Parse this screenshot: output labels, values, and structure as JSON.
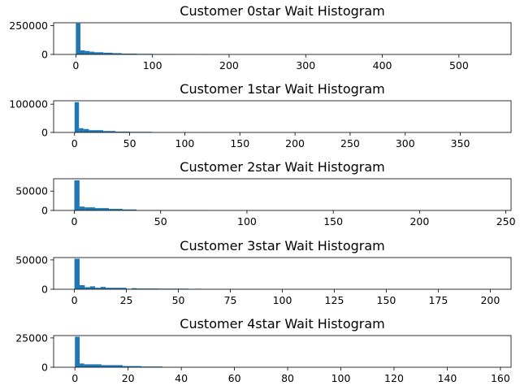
{
  "chart_data": [
    {
      "type": "bar",
      "title": "Customer 0star Wait Histogram",
      "xlim": [
        -29,
        568
      ],
      "ylim": [
        0,
        275000
      ],
      "xticks": [
        0,
        100,
        200,
        300,
        400,
        500
      ],
      "yticks": [
        0,
        250000
      ],
      "bars": [
        {
          "x0": 0,
          "x1": 6,
          "y": 270000
        },
        {
          "x0": 6,
          "x1": 12,
          "y": 35000
        },
        {
          "x0": 12,
          "x1": 18,
          "y": 30000
        },
        {
          "x0": 18,
          "x1": 24,
          "y": 24000
        },
        {
          "x0": 24,
          "x1": 36,
          "y": 19000
        },
        {
          "x0": 36,
          "x1": 48,
          "y": 15000
        },
        {
          "x0": 48,
          "x1": 60,
          "y": 11000
        },
        {
          "x0": 60,
          "x1": 80,
          "y": 7000
        },
        {
          "x0": 80,
          "x1": 100,
          "y": 5000
        },
        {
          "x0": 100,
          "x1": 130,
          "y": 3500
        },
        {
          "x0": 130,
          "x1": 160,
          "y": 2500
        },
        {
          "x0": 160,
          "x1": 178,
          "y": 1500
        },
        {
          "x0": 178,
          "x1": 260,
          "y": 300
        }
      ]
    },
    {
      "type": "bar",
      "title": "Customer 1star Wait Histogram",
      "xlim": [
        -19,
        396
      ],
      "ylim": [
        0,
        112000
      ],
      "xticks": [
        0,
        50,
        100,
        150,
        200,
        250,
        300,
        350
      ],
      "yticks": [
        0,
        100000
      ],
      "bars": [
        {
          "x0": 0,
          "x1": 4,
          "y": 107000
        },
        {
          "x0": 4,
          "x1": 8,
          "y": 15000
        },
        {
          "x0": 8,
          "x1": 13,
          "y": 12000
        },
        {
          "x0": 13,
          "x1": 26,
          "y": 8000
        },
        {
          "x0": 26,
          "x1": 37,
          "y": 5000
        },
        {
          "x0": 37,
          "x1": 50,
          "y": 3000
        },
        {
          "x0": 50,
          "x1": 70,
          "y": 2000
        },
        {
          "x0": 70,
          "x1": 120,
          "y": 400
        }
      ]
    },
    {
      "type": "bar",
      "title": "Customer 2star Wait Histogram",
      "xlim": [
        -12,
        253
      ],
      "ylim": [
        0,
        82000
      ],
      "xticks": [
        0,
        50,
        100,
        150,
        200,
        250
      ],
      "yticks": [
        0,
        50000
      ],
      "bars": [
        {
          "x0": 0,
          "x1": 3,
          "y": 78000
        },
        {
          "x0": 3,
          "x1": 6,
          "y": 10000
        },
        {
          "x0": 6,
          "x1": 12,
          "y": 8000
        },
        {
          "x0": 12,
          "x1": 20,
          "y": 6000
        },
        {
          "x0": 20,
          "x1": 28,
          "y": 4000
        },
        {
          "x0": 28,
          "x1": 36,
          "y": 2500
        },
        {
          "x0": 36,
          "x1": 80,
          "y": 400
        }
      ]
    },
    {
      "type": "bar",
      "title": "Customer 3star Wait Histogram",
      "xlim": [
        -10,
        210
      ],
      "ylim": [
        0,
        54000
      ],
      "xticks": [
        0,
        25,
        50,
        75,
        100,
        125,
        150,
        175,
        200
      ],
      "yticks": [
        0,
        50000
      ],
      "bars": [
        {
          "x0": 0,
          "x1": 2.5,
          "y": 52000
        },
        {
          "x0": 2.5,
          "x1": 5,
          "y": 7000
        },
        {
          "x0": 5,
          "x1": 7.5,
          "y": 3500
        },
        {
          "x0": 7.5,
          "x1": 10,
          "y": 5000
        },
        {
          "x0": 10,
          "x1": 12.5,
          "y": 2500
        },
        {
          "x0": 12.5,
          "x1": 15,
          "y": 4000
        },
        {
          "x0": 15,
          "x1": 25,
          "y": 2500
        },
        {
          "x0": 25,
          "x1": 27.5,
          "y": 800
        },
        {
          "x0": 27.5,
          "x1": 30,
          "y": 1800
        },
        {
          "x0": 30,
          "x1": 40,
          "y": 1200
        },
        {
          "x0": 40,
          "x1": 55,
          "y": 1000
        },
        {
          "x0": 55,
          "x1": 58,
          "y": 300
        },
        {
          "x0": 58,
          "x1": 61,
          "y": 800
        },
        {
          "x0": 61,
          "x1": 90,
          "y": 200
        }
      ]
    },
    {
      "type": "bar",
      "title": "Customer 4star Wait Histogram",
      "xlim": [
        -8,
        164
      ],
      "ylim": [
        0,
        27000
      ],
      "xticks": [
        0,
        20,
        40,
        60,
        80,
        100,
        120,
        140,
        160
      ],
      "yticks": [
        0,
        25000
      ],
      "bars": [
        {
          "x0": 0,
          "x1": 1.8,
          "y": 26000
        },
        {
          "x0": 1.8,
          "x1": 3.5,
          "y": 3200
        },
        {
          "x0": 3.5,
          "x1": 10,
          "y": 2500
        },
        {
          "x0": 10,
          "x1": 18,
          "y": 1800
        },
        {
          "x0": 18,
          "x1": 25,
          "y": 1000
        },
        {
          "x0": 25,
          "x1": 33,
          "y": 600
        },
        {
          "x0": 33,
          "x1": 60,
          "y": 150
        }
      ]
    }
  ],
  "colors": {
    "bar": "#1f77b4",
    "axis": "#000000",
    "background": "#ffffff"
  }
}
